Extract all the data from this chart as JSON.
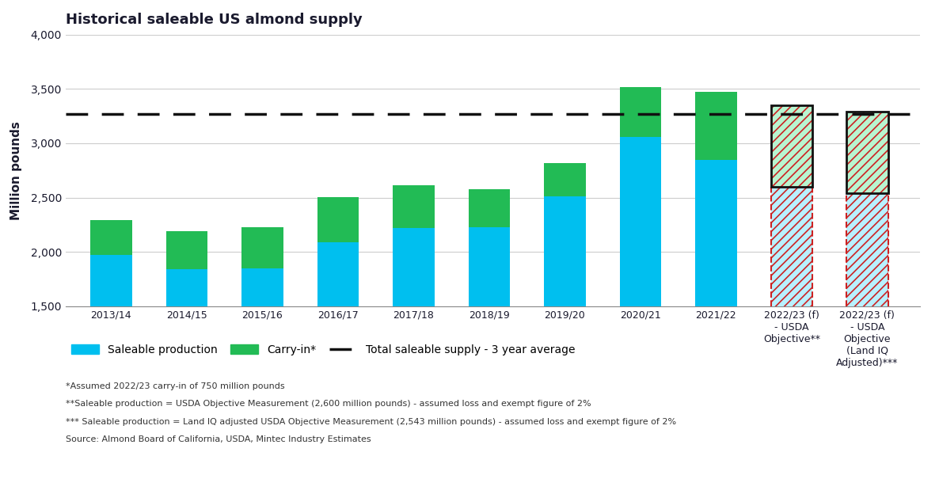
{
  "title": "Historical saleable US almond supply",
  "ylabel": "Million pounds",
  "categories": [
    "2013/14",
    "2014/15",
    "2015/16",
    "2016/17",
    "2017/18",
    "2018/19",
    "2019/20",
    "2020/21",
    "2021/22",
    "2022/23 (f)\n- USDA\nObjective**",
    "2022/23 (f)\n- USDA\nObjective\n(Land IQ\nAdjusted)***"
  ],
  "saleable_production": [
    1975,
    1840,
    1850,
    2090,
    2220,
    2230,
    2510,
    3060,
    2850,
    2600,
    2543
  ],
  "carry_in": [
    315,
    350,
    375,
    415,
    390,
    350,
    310,
    460,
    620,
    750,
    750
  ],
  "three_year_avg": 3270,
  "ylim": [
    1500,
    4000
  ],
  "yticks": [
    1500,
    2000,
    2500,
    3000,
    3500,
    4000
  ],
  "solid_color_blue": "#00BFEF",
  "solid_color_green": "#22BB55",
  "hatch_fill_blue": "#B8F0FF",
  "hatch_fill_green": "#B8F5D0",
  "hatch_edge_red": "#CC2222",
  "black_outline": "#111111",
  "dashed_line_color": "#111111",
  "footnotes": [
    "*Assumed 2022/23 carry-in of 750 million pounds",
    "**Saleable production = USDA Objective Measurement (2,600 million pounds) - assumed loss and exempt figure of 2%",
    "*** Saleable production = Land IQ adjusted USDA Objective Measurement (2,543 million pounds) - assumed loss and exempt figure of 2%",
    "Source: Almond Board of California, USDA, Mintec Industry Estimates"
  ],
  "n_solid": 9,
  "n_forecast": 2,
  "bar_width": 0.55
}
